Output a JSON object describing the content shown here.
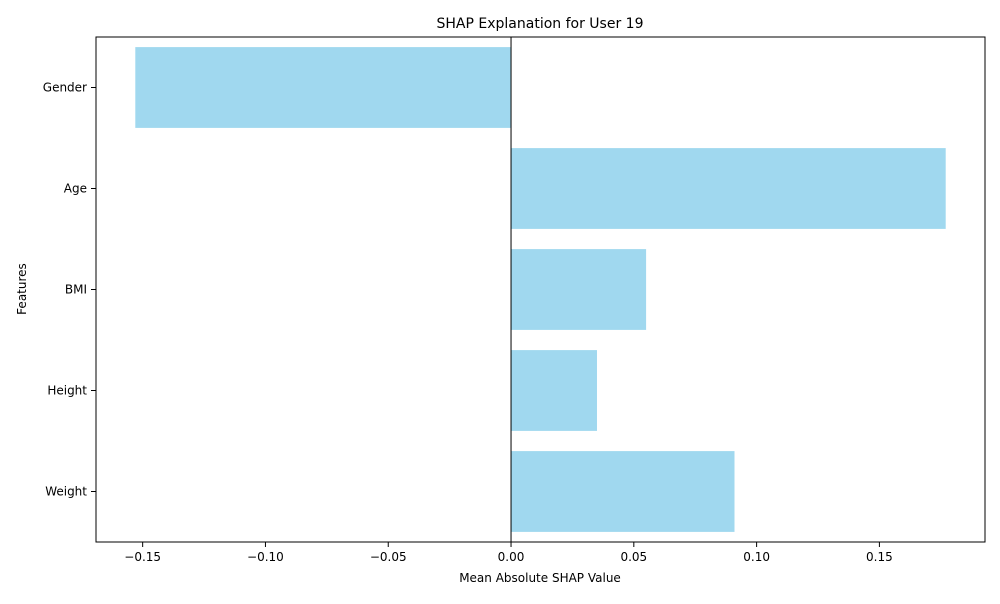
{
  "chart_data": {
    "type": "bar",
    "orientation": "horizontal",
    "title": "SHAP Explanation for User 19",
    "xlabel": "Mean Absolute SHAP Value",
    "ylabel": "Features",
    "categories": [
      "Gender",
      "Age",
      "BMI",
      "Height",
      "Weight"
    ],
    "values": [
      -0.153,
      0.177,
      0.055,
      0.035,
      0.091
    ],
    "xlim": [
      -0.169,
      0.193
    ],
    "xticks": [
      -0.15,
      -0.1,
      -0.05,
      0.0,
      0.05,
      0.1,
      0.15
    ],
    "xtick_labels": [
      "−0.15",
      "−0.10",
      "−0.05",
      "0.00",
      "0.05",
      "0.10",
      "0.15"
    ],
    "bar_color": "#a0d8ef",
    "zero_line": true,
    "grid": false,
    "legend": "none"
  }
}
